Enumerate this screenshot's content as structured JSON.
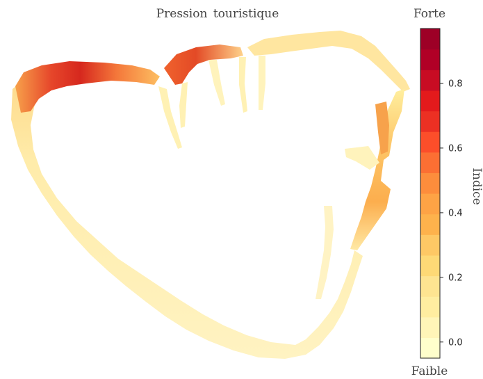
{
  "title": "Pression  touristique",
  "legend": {
    "title": "Indice",
    "top_label": "Forte",
    "bottom_label": "Faible",
    "min": -0.05,
    "max": 0.97,
    "ticks": [
      "0.0",
      "0.2",
      "0.4",
      "0.6",
      "0.8"
    ],
    "tick_values": [
      0.0,
      0.2,
      0.4,
      0.6,
      0.8
    ],
    "colors": [
      "#ffffcc",
      "#fff5b8",
      "#ffeda0",
      "#fee491",
      "#fed976",
      "#fec865",
      "#feb24c",
      "#fea345",
      "#fd8d3c",
      "#fc6f33",
      "#fc4e2a",
      "#ec3023",
      "#e31a1c",
      "#c80c23",
      "#b10026",
      "#9d0026"
    ]
  },
  "colors": {
    "lowest": "#fff8c8",
    "low": "#ffeca6",
    "mid": "#fdb45a",
    "high": "#f26d2e",
    "highest": "#c8121f"
  }
}
